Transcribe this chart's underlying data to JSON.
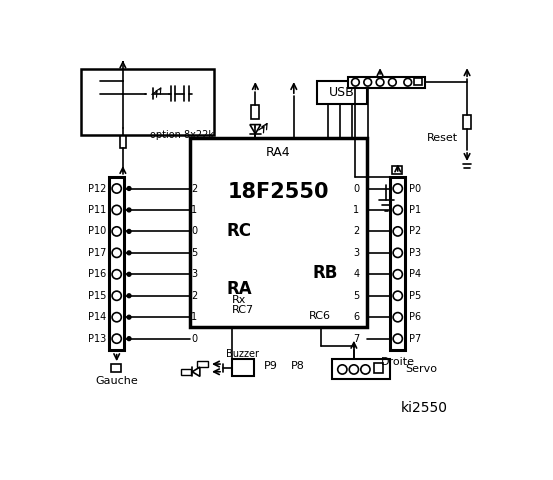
{
  "title": "ki2550",
  "bg_color": "#ffffff",
  "line_color": "#000000",
  "chip_label": "18F2550",
  "chip_sublabel": "RA4",
  "rc_label": "RC",
  "ra_label": "RA",
  "rb_label": "RB",
  "usb_label": "USB",
  "reset_label": "Reset",
  "gauche_label": "Gauche",
  "droite_label": "Droite",
  "buzzer_label": "Buzzer",
  "servo_label": "Servo",
  "option_label": "option 8x22k",
  "rc7_label": "RC7",
  "rx_label": "Rx",
  "rc6_label": "RC6",
  "p9_label": "P9",
  "p8_label": "P8",
  "left_pins": [
    "P12",
    "P11",
    "P10",
    "P17",
    "P16",
    "P15",
    "P14",
    "P13"
  ],
  "right_pins": [
    "P0",
    "P1",
    "P2",
    "P3",
    "P4",
    "P5",
    "P6",
    "P7"
  ],
  "rc_pins": [
    "2",
    "1",
    "0"
  ],
  "ra_pins": [
    "5",
    "3",
    "2",
    "1",
    "0"
  ],
  "rb_pins": [
    "0",
    "1",
    "2",
    "3",
    "4",
    "5",
    "6",
    "7"
  ]
}
